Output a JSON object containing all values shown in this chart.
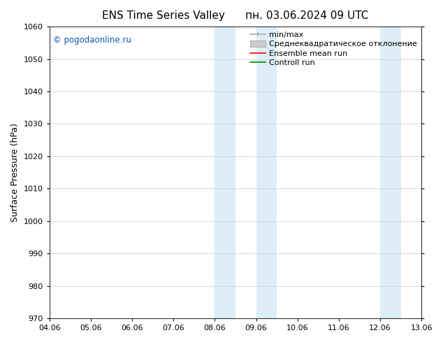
{
  "title": "ENS Time Series Valley",
  "title2": "пн. 03.06.2024 09 UTC",
  "ylabel": "Surface Pressure (hPa)",
  "ylim": [
    970,
    1060
  ],
  "yticks": [
    970,
    980,
    990,
    1000,
    1010,
    1020,
    1030,
    1040,
    1050,
    1060
  ],
  "xtick_labels": [
    "04.06",
    "05.06",
    "06.06",
    "07.06",
    "08.06",
    "09.06",
    "10.06",
    "11.06",
    "12.06",
    "13.06"
  ],
  "shaded_regions": [
    {
      "xstart": 4.0,
      "xend": 4.5
    },
    {
      "xstart": 5.0,
      "xend": 5.5
    },
    {
      "xstart": 8.0,
      "xend": 8.5
    },
    {
      "xstart": 9.0,
      "xend": 9.5
    }
  ],
  "shaded_color": "#ddeef8",
  "watermark": "© pogodaonline.ru",
  "watermark_color": "#1155aa",
  "legend_items": [
    {
      "label": "min/max",
      "type": "errorbar",
      "color": "#aaaaaa",
      "lw": 1.2
    },
    {
      "label": "Среднеквадратическое отклонение",
      "type": "patch",
      "color": "#cccccc",
      "lw": 1.0
    },
    {
      "label": "Ensemble mean run",
      "type": "line",
      "color": "red",
      "lw": 1.2
    },
    {
      "label": "Controll run",
      "type": "line",
      "color": "green",
      "lw": 1.2
    }
  ],
  "bg_color": "#ffffff",
  "grid_color": "#cccccc",
  "tick_label_fontsize": 8,
  "axis_label_fontsize": 9,
  "title_fontsize": 11,
  "legend_fontsize": 8
}
